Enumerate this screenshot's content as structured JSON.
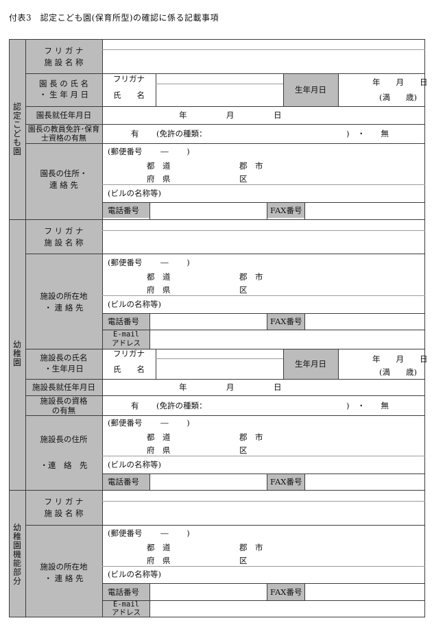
{
  "title": "付表3　認定こども園(保育所型)の確認に係る記載事項",
  "sections": {
    "nintei": "認定こども園",
    "youchien": "幼稚園",
    "kinou": "幼稚園機能部分"
  },
  "labels": {
    "furigana_spaced": "フ リ ガ ナ",
    "shisetsu_meishou": "施 設 名 称",
    "enchou_shimei": "園 長 の 氏 名",
    "seinengappi_dot": "・ 生 年 月 日",
    "furigana": "フリガナ",
    "shimei": "氏　　名",
    "seinengappi": "生年月日",
    "nen_gatsu_nichi": "年　　月　　日",
    "man_sai": "(満　　歳)",
    "enchou_shuunin": "園長就任年月日",
    "shuunin_date": "年　　　　　月　　　　　日",
    "enchou_menkyo": "園長の教員免許･保育士資格の有無",
    "ari": "有",
    "menkyo_shurui": "(免許の種類：",
    "paren_close_nashi": ")　・　　無",
    "enchou_juusho": "園長の住所・",
    "renrakusaki": "連 絡 先",
    "yuubin": "(郵便番号　　 ―　　 )",
    "todou": "都　道",
    "fuken": "府　県",
    "gunshi": "郡　市",
    "ku": "区",
    "biru": "(ビルの名称等)",
    "denwa": "電話番号",
    "fax": "FAX番号",
    "shozaichi": "施設の所在地",
    "dot_renrakusaki": "・ 連 絡 先",
    "email": "E-mail",
    "address": "アドレス",
    "shisetsuchou_shimei": "施設長の氏名",
    "shisetsuchou_seinen": "・生年月日",
    "shisetsuchou_shuunin": "施設長就任年月日",
    "shisetsuchou_shikaku_1": "施設長の資格",
    "shisetsuchou_shikaku_2": "の有無",
    "shisetsuchou_juusho": "施設長の住所",
    "dot_renrakusaki2": "・連　絡　先"
  }
}
